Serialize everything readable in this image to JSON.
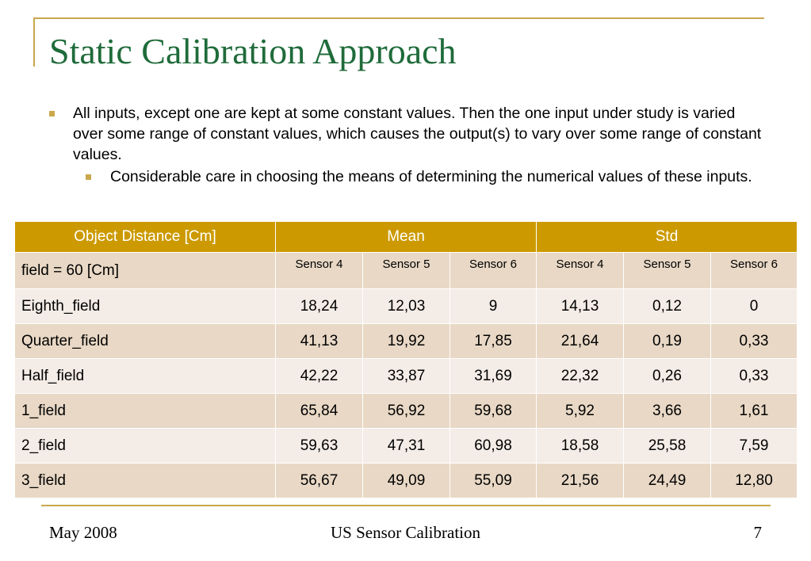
{
  "slide": {
    "title": "Static Calibration Approach",
    "bullet1": "All inputs, except one are kept at some constant values. Then the one input under study is varied over some range of constant values, which causes the output(s) to vary over some range of constant values.",
    "bullet2": "Considerable care in choosing the means of determining the numerical values of these inputs."
  },
  "table": {
    "headers": [
      "Object Distance [Cm]",
      "Mean",
      "Std"
    ],
    "subheader": {
      "label": "field = 60 [Cm]",
      "sensors": [
        "Sensor 4",
        "Sensor 5",
        "Sensor 6",
        "Sensor 4",
        "Sensor 5",
        "Sensor 6"
      ]
    },
    "rows": [
      {
        "label": "Eighth_field",
        "values": [
          "18,24",
          "12,03",
          "9",
          "14,13",
          "0,12",
          "0"
        ]
      },
      {
        "label": "Quarter_field",
        "values": [
          "41,13",
          "19,92",
          "17,85",
          "21,64",
          "0,19",
          "0,33"
        ]
      },
      {
        "label": "Half_field",
        "values": [
          "42,22",
          "33,87",
          "31,69",
          "22,32",
          "0,26",
          "0,33"
        ]
      },
      {
        "label": "1_field",
        "values": [
          "65,84",
          "56,92",
          "59,68",
          "5,92",
          "3,66",
          "1,61"
        ]
      },
      {
        "label": "2_field",
        "values": [
          "59,63",
          "47,31",
          "60,98",
          "18,58",
          "25,58",
          "7,59"
        ]
      },
      {
        "label": "3_field",
        "values": [
          "56,67",
          "49,09",
          "55,09",
          "21,56",
          "24,49",
          "12,80"
        ]
      }
    ]
  },
  "footer": {
    "date": "May 2008",
    "center": "US Sensor Calibration",
    "page": "7"
  },
  "colors": {
    "accent": "#c9a84c",
    "header_fill": "#cc9a00",
    "title": "#1f6b3a",
    "row_odd": "#e8d8c5",
    "row_even": "#f4ece6"
  }
}
